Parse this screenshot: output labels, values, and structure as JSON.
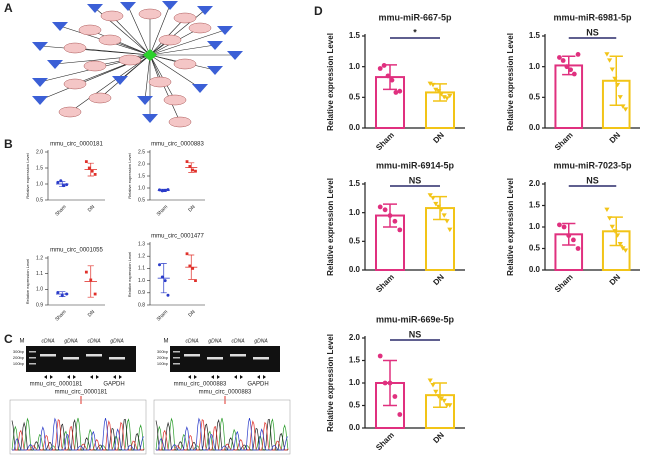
{
  "panels": [
    "A",
    "B",
    "C",
    "D"
  ],
  "gels": [
    {
      "markers": [
        "300bp",
        "200bp",
        "100bp"
      ],
      "marker_lane": "M",
      "lanes": [
        "cDNA",
        "gDNA",
        "cDNA",
        "gDNA"
      ],
      "captions": [
        "mmu_circ_0000181",
        "GAPDH"
      ],
      "junction": "mmu_circ_0000181"
    },
    {
      "markers": [
        "300bp",
        "200bp",
        "100bp"
      ],
      "marker_lane": "M",
      "lanes": [
        "cDNA",
        "gDNA",
        "cDNA",
        "gDNA"
      ],
      "captions": [
        "mmu_circ_0000883",
        "GAPDH"
      ],
      "junction": "mmu_circ_0000883"
    }
  ],
  "chart_data": [
    {
      "type": "dot",
      "title": "mmu_circ_0000181",
      "y_label": "Relative expression Level",
      "categories": [
        "Sham",
        "DN"
      ],
      "colors": [
        "#2a3bc9",
        "#e0302a"
      ],
      "values": [
        1.0,
        1.45
      ],
      "errors": [
        0.08,
        0.2
      ],
      "points": [
        [
          1.05,
          1.1,
          0.95,
          0.98
        ],
        [
          1.7,
          1.5,
          1.4,
          1.3
        ]
      ],
      "ylim": [
        0.5,
        2.0
      ],
      "yticks": [
        0.5,
        {
          "value": 1.0,
          "label": "1.0"
        },
        1.5,
        {
          "value": 2.0,
          "label": "2.0"
        }
      ]
    },
    {
      "type": "dot",
      "title": "mmu_circ_0000883",
      "y_label": "Relative expression Level",
      "categories": [
        "Sham",
        "DN"
      ],
      "colors": [
        "#2a3bc9",
        "#e0302a"
      ],
      "values": [
        0.9,
        1.85
      ],
      "errors": [
        0.05,
        0.2
      ],
      "points": [
        [
          0.92,
          0.88,
          0.9,
          0.93
        ],
        [
          2.1,
          1.9,
          1.75,
          1.7
        ]
      ],
      "ylim": [
        0.5,
        2.5
      ],
      "yticks": [
        0.5,
        {
          "value": 1.0,
          "label": "1.0"
        },
        1.5,
        {
          "value": 2.0,
          "label": "2.0"
        },
        2.5
      ]
    },
    {
      "type": "dot",
      "title": "mmu_circ_0001055",
      "y_label": "Relative expression Level",
      "categories": [
        "Sham",
        "DN"
      ],
      "colors": [
        "#2a3bc9",
        "#e0302a"
      ],
      "values": [
        0.97,
        1.05
      ],
      "errors": [
        0.015,
        0.1
      ],
      "points": [
        [
          0.98,
          0.96,
          0.97
        ],
        [
          1.11,
          1.06,
          0.97
        ]
      ],
      "ylim": [
        0.9,
        1.2
      ],
      "yticks": [
        0.9,
        {
          "value": 1.0,
          "label": "1.0"
        },
        1.1,
        1.2
      ]
    },
    {
      "type": "dot",
      "title": "mmu_circ_0001477",
      "y_label": "Relative expression Level",
      "categories": [
        "Sham",
        "DN"
      ],
      "colors": [
        "#2a3bc9",
        "#e0302a"
      ],
      "values": [
        1.02,
        1.11
      ],
      "errors": [
        0.12,
        0.1
      ],
      "points": [
        [
          1.13,
          1.03,
          1.0,
          0.88
        ],
        [
          1.22,
          1.12,
          1.1,
          1.0
        ]
      ],
      "ylim": [
        0.8,
        1.3
      ],
      "yticks": [
        0.8,
        0.9,
        {
          "value": 1.0,
          "label": "1.0"
        },
        1.1,
        1.2,
        1.3
      ]
    },
    {
      "type": "bar",
      "title": "mmu-miR-667-5p",
      "y_label": "Relative expression Level",
      "categories": [
        "Sham",
        "DN"
      ],
      "colors": [
        "#e0307f",
        "#f2c417"
      ],
      "values": [
        0.83,
        0.58
      ],
      "errors": [
        0.2,
        0.14
      ],
      "points": [
        [
          0.97,
          1.02,
          0.85,
          0.78,
          0.58,
          0.6
        ],
        [
          0.72,
          0.7,
          0.62,
          0.6,
          0.55,
          0.5,
          0.48,
          0.52
        ]
      ],
      "annotation": "*",
      "ylim": [
        0,
        1.5
      ],
      "yticks": [
        {
          "value": 0,
          "label": "0.0"
        },
        0.5,
        {
          "value": 1.0,
          "label": "1.0"
        },
        1.5
      ]
    },
    {
      "type": "bar",
      "title": "mmu-miR-6981-5p",
      "y_label": "Relative expression Level",
      "categories": [
        "Sham",
        "DN"
      ],
      "colors": [
        "#e0307f",
        "#f2c417"
      ],
      "values": [
        1.02,
        0.77
      ],
      "errors": [
        0.15,
        0.4
      ],
      "points": [
        [
          1.15,
          1.1,
          1.0,
          0.95,
          0.88,
          1.2
        ],
        [
          1.2,
          1.1,
          0.95,
          0.8,
          0.7,
          0.5,
          0.35,
          0.3
        ]
      ],
      "annotation": "NS",
      "ylim": [
        0,
        1.5
      ],
      "yticks": [
        {
          "value": 0,
          "label": "0.0"
        },
        0.5,
        {
          "value": 1.0,
          "label": "1.0"
        },
        1.5
      ]
    },
    {
      "type": "bar",
      "title": "mmu-miR-6914-5p",
      "y_label": "Relative expression Level",
      "categories": [
        "Sham",
        "DN"
      ],
      "colors": [
        "#e0307f",
        "#f2c417"
      ],
      "values": [
        0.95,
        1.08
      ],
      "errors": [
        0.2,
        0.2
      ],
      "points": [
        [
          1.1,
          1.05,
          0.95,
          0.85,
          0.7
        ],
        [
          1.3,
          1.25,
          1.15,
          1.1,
          1.05,
          0.95,
          0.85,
          0.7
        ]
      ],
      "annotation": "NS",
      "ylim": [
        0,
        1.5
      ],
      "yticks": [
        {
          "value": 0,
          "label": "0.0"
        },
        0.5,
        {
          "value": 1.0,
          "label": "1.0"
        },
        1.5
      ]
    },
    {
      "type": "bar",
      "title": "mmu-miR-7023-5p",
      "y_label": "Relative expression Level",
      "categories": [
        "Sham",
        "DN"
      ],
      "colors": [
        "#e0307f",
        "#f2c417"
      ],
      "values": [
        0.83,
        0.9
      ],
      "errors": [
        0.25,
        0.33
      ],
      "points": [
        [
          1.05,
          1.0,
          0.8,
          0.7,
          0.5
        ],
        [
          1.4,
          1.2,
          1.0,
          0.9,
          0.8,
          0.6,
          0.5,
          0.45
        ]
      ],
      "annotation": "NS",
      "ylim": [
        0,
        2.0
      ],
      "yticks": [
        {
          "value": 0,
          "label": "0.0"
        },
        0.5,
        {
          "value": 1.0,
          "label": "1.0"
        },
        1.5,
        {
          "value": 2.0,
          "label": "2.0"
        }
      ]
    },
    {
      "type": "bar",
      "title": "mmu-miR-669e-5p",
      "y_label": "Relative expression Level",
      "categories": [
        "Sham",
        "DN"
      ],
      "colors": [
        "#e0307f",
        "#f2c417"
      ],
      "values": [
        1.0,
        0.73
      ],
      "errors": [
        0.5,
        0.27
      ],
      "points": [
        [
          1.6,
          1.0,
          1.0,
          0.7,
          0.3
        ],
        [
          1.05,
          0.95,
          0.8,
          0.7,
          0.65,
          0.6,
          0.5,
          0.5
        ]
      ],
      "annotation": "NS",
      "ylim": [
        0,
        2.0
      ],
      "yticks": [
        {
          "value": 0,
          "label": "0.0"
        },
        0.5,
        {
          "value": 1.0,
          "label": "1.0"
        },
        1.5,
        {
          "value": 2.0,
          "label": "2.0"
        }
      ]
    }
  ]
}
